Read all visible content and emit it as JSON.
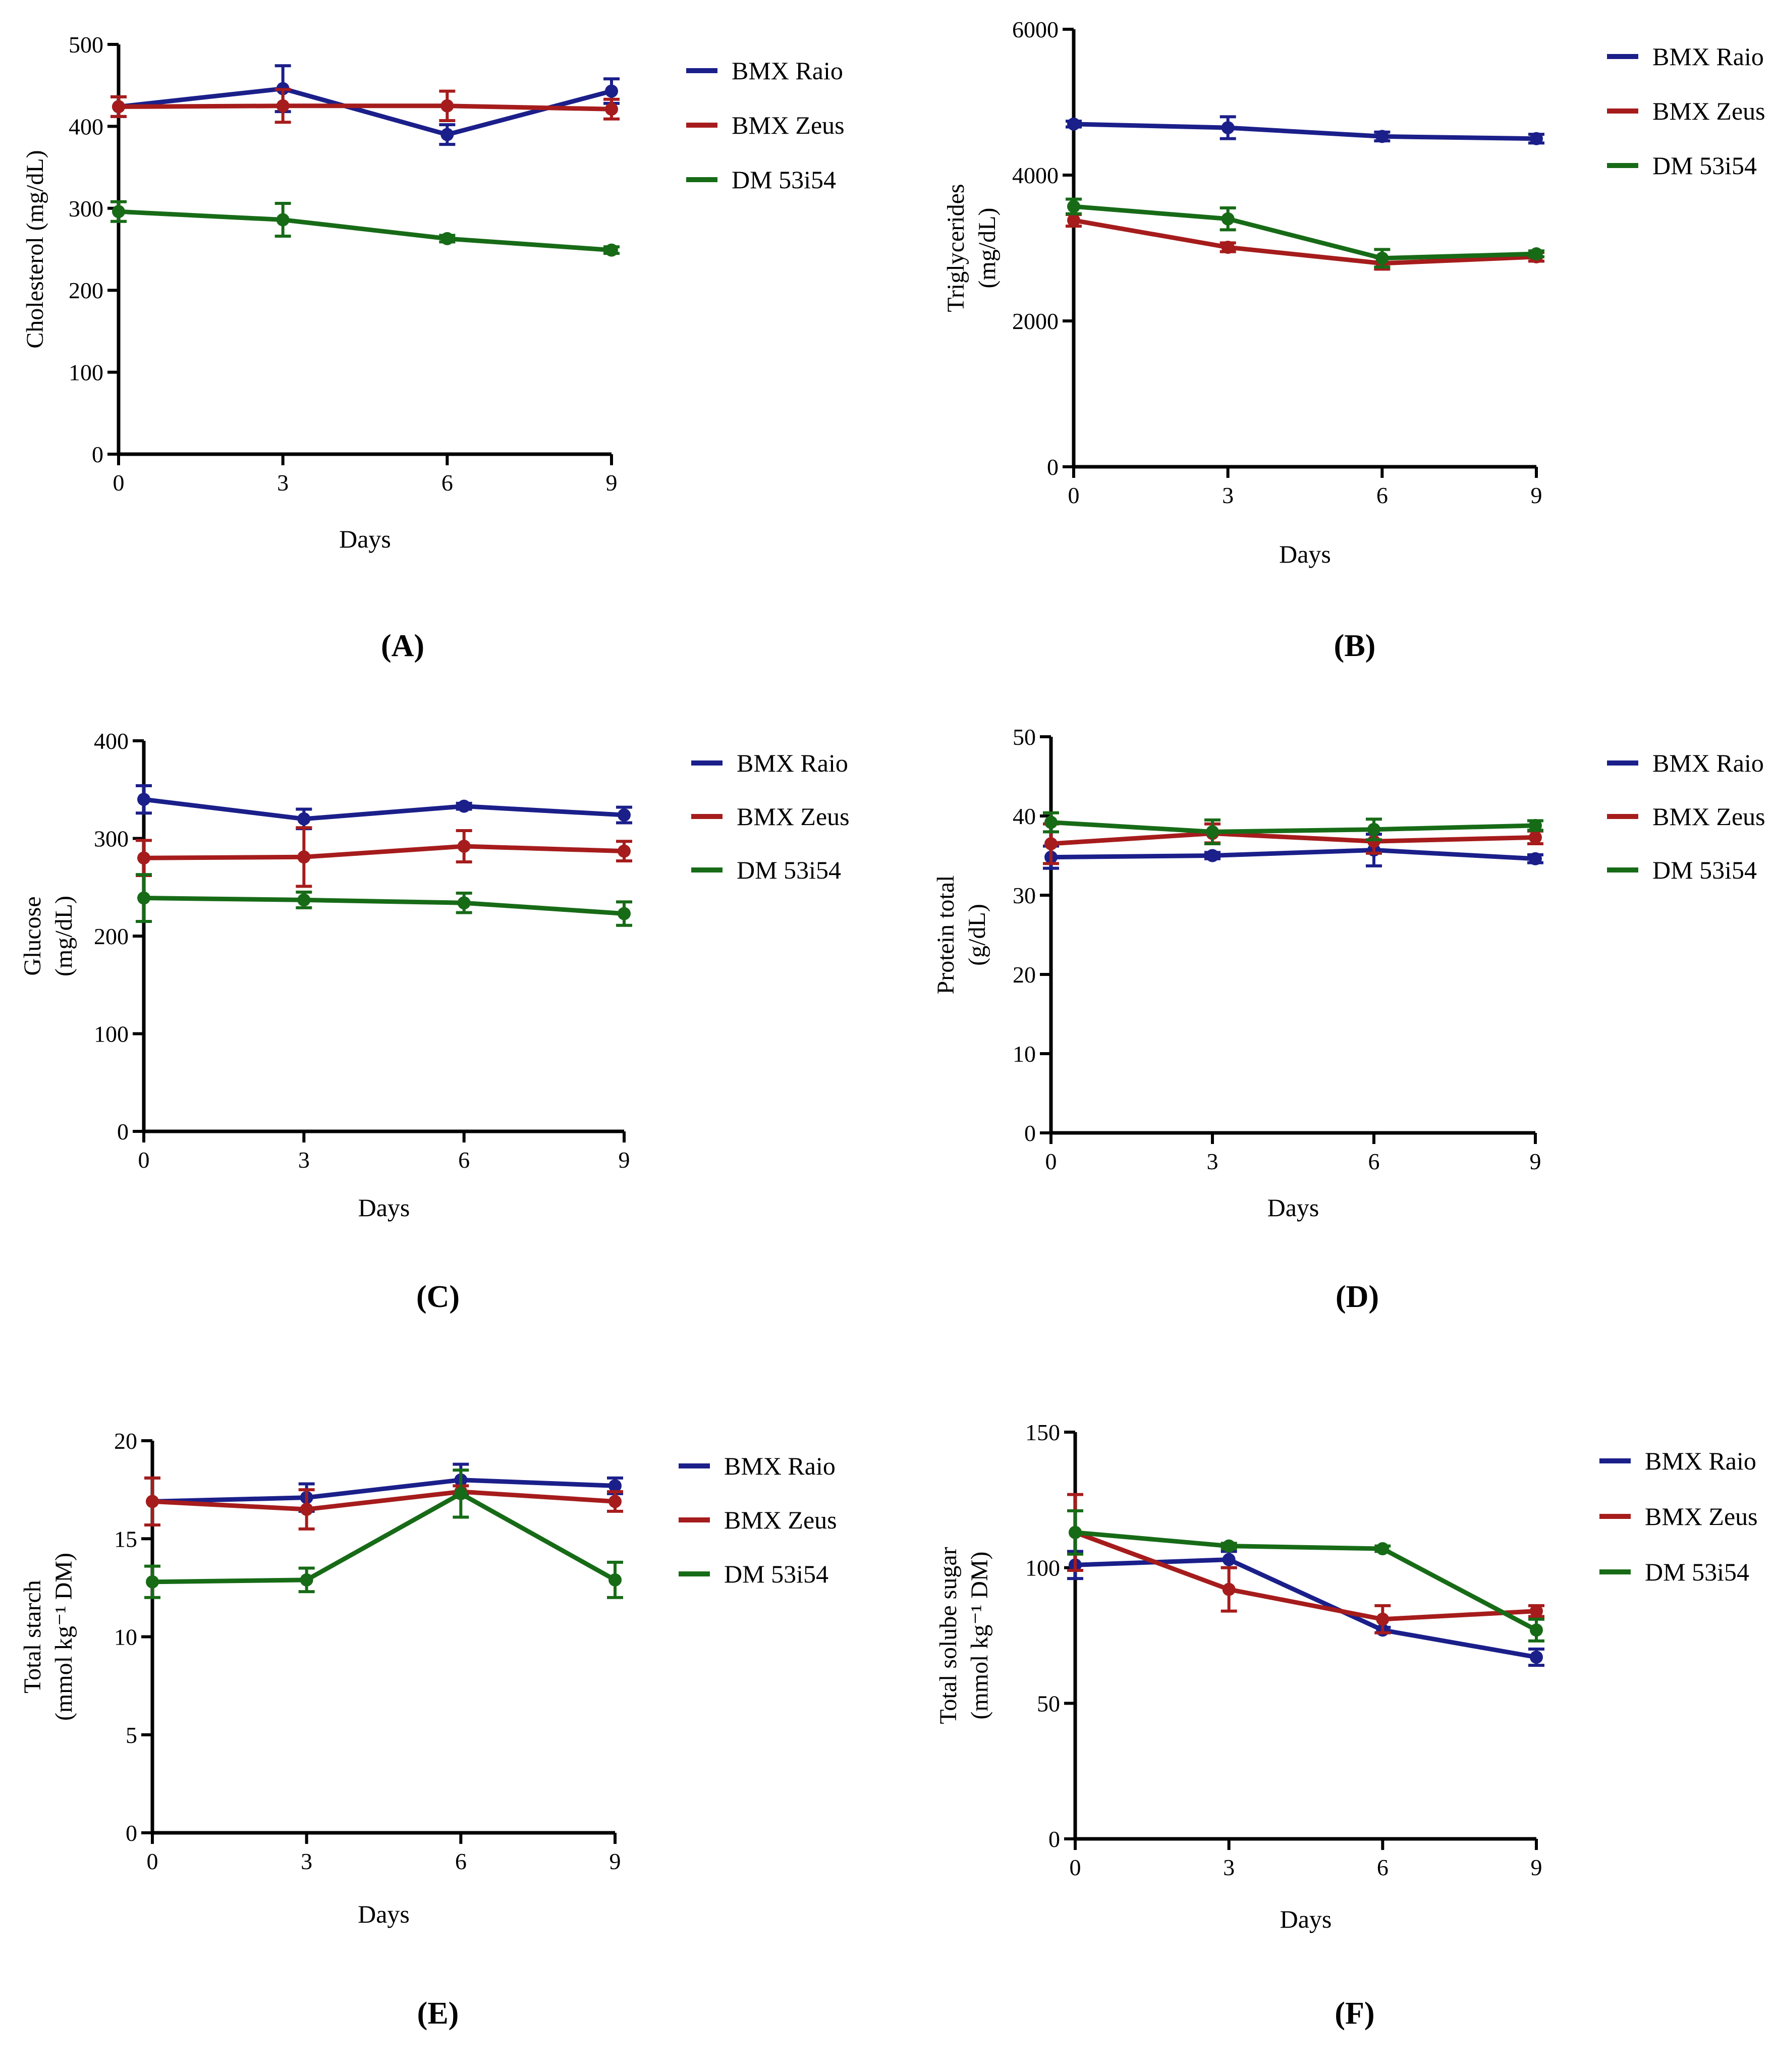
{
  "legend_labels": [
    "BMX Raio",
    "BMX Zeus",
    "DM 53i54"
  ],
  "series_colors": {
    "BMX Raio": "#1b1f8a",
    "BMX Zeus": "#a61c1c",
    "DM 53i54": "#176b17"
  },
  "chart_data": [
    {
      "panel": "(A)",
      "type": "line",
      "ylabel_lines": [
        "Cholesterol (mg/dL)"
      ],
      "xlabel": "Days",
      "x": [
        0,
        3,
        6,
        9
      ],
      "xticks": [
        "0",
        "3",
        "6",
        "9"
      ],
      "ylim": [
        0,
        500
      ],
      "yticks": [
        0,
        100,
        200,
        300,
        400,
        500
      ],
      "series": [
        {
          "name": "BMX Raio",
          "values": [
            424,
            446,
            390,
            443
          ],
          "errors": [
            12,
            28,
            12,
            15
          ]
        },
        {
          "name": "BMX Zeus",
          "values": [
            424,
            425,
            425,
            421
          ],
          "errors": [
            12,
            20,
            18,
            12
          ]
        },
        {
          "name": "DM 53i54",
          "values": [
            296,
            286,
            263,
            249
          ],
          "errors": [
            12,
            20,
            4,
            4
          ]
        }
      ]
    },
    {
      "panel": "(B)",
      "type": "line",
      "ylabel_lines": [
        "Triglycerides",
        "(mg/dL)"
      ],
      "xlabel": "Days",
      "x": [
        0,
        3,
        6,
        9
      ],
      "xticks": [
        "0",
        "3",
        "6",
        "9"
      ],
      "ylim": [
        0,
        6000
      ],
      "yticks": [
        0,
        2000,
        4000,
        6000
      ],
      "series": [
        {
          "name": "BMX Raio",
          "values": [
            4700,
            4650,
            4530,
            4500
          ],
          "errors": [
            40,
            150,
            60,
            60
          ]
        },
        {
          "name": "BMX Zeus",
          "values": [
            3380,
            3010,
            2790,
            2880
          ],
          "errors": [
            80,
            60,
            80,
            60
          ]
        },
        {
          "name": "DM 53i54",
          "values": [
            3570,
            3400,
            2860,
            2920
          ],
          "errors": [
            100,
            150,
            120,
            40
          ]
        }
      ]
    },
    {
      "panel": "(C)",
      "type": "line",
      "ylabel_lines": [
        "Glucose",
        "(mg/dL)"
      ],
      "xlabel": "Days",
      "x": [
        0,
        3,
        6,
        9
      ],
      "xticks": [
        "0",
        "3",
        "6",
        "9"
      ],
      "ylim": [
        0,
        400
      ],
      "yticks": [
        0,
        100,
        200,
        300,
        400
      ],
      "series": [
        {
          "name": "BMX Raio",
          "values": [
            340,
            320,
            333,
            324
          ],
          "errors": [
            14,
            10,
            3,
            8
          ]
        },
        {
          "name": "BMX Zeus",
          "values": [
            280,
            281,
            292,
            287
          ],
          "errors": [
            18,
            30,
            16,
            10
          ]
        },
        {
          "name": "DM 53i54",
          "values": [
            239,
            237,
            234,
            223
          ],
          "errors": [
            24,
            8,
            10,
            12
          ]
        }
      ]
    },
    {
      "panel": "(D)",
      "type": "line",
      "ylabel_lines": [
        "Protein total",
        "(g/dL)"
      ],
      "xlabel": "Days",
      "x": [
        0,
        3,
        6,
        9
      ],
      "xticks": [
        "0",
        "3",
        "6",
        "9"
      ],
      "ylim": [
        0,
        50
      ],
      "yticks": [
        0,
        10,
        20,
        30,
        40,
        50
      ],
      "series": [
        {
          "name": "BMX Raio",
          "values": [
            34.8,
            35,
            35.7,
            34.6
          ],
          "errors": [
            1.4,
            0.4,
            2,
            0.5
          ]
        },
        {
          "name": "BMX Zeus",
          "values": [
            36.5,
            37.8,
            36.8,
            37.3
          ],
          "errors": [
            2.5,
            1.2,
            1.5,
            0.8
          ]
        },
        {
          "name": "DM 53i54",
          "values": [
            39.2,
            38,
            38.3,
            38.8
          ],
          "errors": [
            1.2,
            1.5,
            1.3,
            0.6
          ]
        }
      ]
    },
    {
      "panel": "(E)",
      "type": "line",
      "ylabel_lines": [
        "Total starch",
        "(mmol kg⁻¹ DM)"
      ],
      "xlabel": "Days",
      "x": [
        0,
        3,
        6,
        9
      ],
      "xticks": [
        "0",
        "3",
        "6",
        "9"
      ],
      "ylim": [
        0,
        20
      ],
      "yticks": [
        0,
        5,
        10,
        15,
        20
      ],
      "series": [
        {
          "name": "BMX Raio",
          "values": [
            16.9,
            17.1,
            18,
            17.7
          ],
          "errors": [
            1.2,
            0.7,
            0.8,
            0.4
          ]
        },
        {
          "name": "BMX Zeus",
          "values": [
            16.9,
            16.5,
            17.4,
            16.9
          ],
          "errors": [
            1.2,
            1,
            0.3,
            0.5
          ]
        },
        {
          "name": "DM 53i54",
          "values": [
            12.8,
            12.9,
            17.3,
            12.9
          ],
          "errors": [
            0.8,
            0.6,
            1.2,
            0.9
          ]
        }
      ]
    },
    {
      "panel": "(F)",
      "type": "line",
      "ylabel_lines": [
        "Total solube sugar",
        "(mmol kg⁻¹ DM)"
      ],
      "xlabel": "Days",
      "x": [
        0,
        3,
        6,
        9
      ],
      "xticks": [
        "0",
        "3",
        "6",
        "9"
      ],
      "ylim": [
        0,
        150
      ],
      "yticks": [
        0,
        50,
        100,
        150
      ],
      "series": [
        {
          "name": "BMX Raio",
          "values": [
            101,
            103,
            77,
            67
          ],
          "errors": [
            5,
            3,
            1,
            3
          ]
        },
        {
          "name": "BMX Zeus",
          "values": [
            113,
            92,
            81,
            84
          ],
          "errors": [
            14,
            8,
            5,
            2
          ]
        },
        {
          "name": "DM 53i54",
          "values": [
            113,
            108,
            107,
            77
          ],
          "errors": [
            8,
            1,
            1,
            4
          ]
        }
      ]
    }
  ]
}
